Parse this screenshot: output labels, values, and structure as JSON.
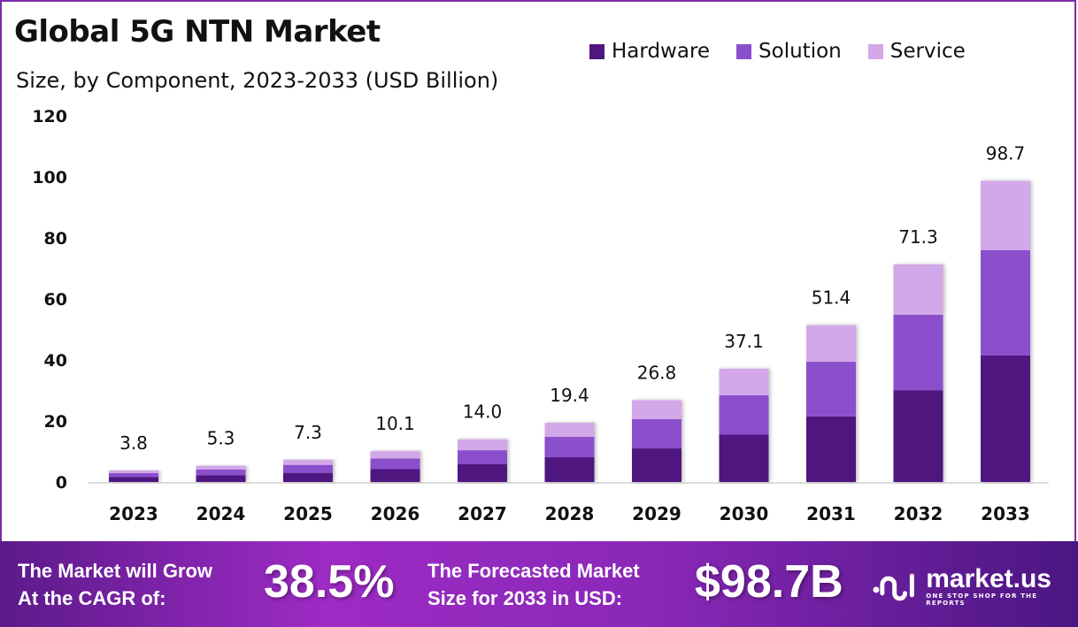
{
  "header": {
    "title": "Global 5G NTN Market",
    "subtitle": "Size, by Component, 2023-2033 (USD Billion)"
  },
  "legend": [
    {
      "label": "Hardware",
      "color": "#4f1680"
    },
    {
      "label": "Solution",
      "color": "#8b4fcc"
    },
    {
      "label": "Service",
      "color": "#d3a8e8"
    }
  ],
  "chart_data": {
    "type": "bar",
    "stacked": true,
    "title": "Global 5G NTN Market",
    "subtitle": "Size, by Component, 2023-2033 (USD Billion)",
    "xlabel": "",
    "ylabel": "",
    "ylim": [
      0,
      120
    ],
    "yticks": [
      "0",
      "20",
      "40",
      "60",
      "80",
      "100",
      "120"
    ],
    "grid": false,
    "legend_position": "top-right",
    "categories": [
      "2023",
      "2024",
      "2025",
      "2026",
      "2027",
      "2028",
      "2029",
      "2030",
      "2031",
      "2032",
      "2033"
    ],
    "totals": [
      "3.8",
      "5.3",
      "7.3",
      "10.1",
      "14.0",
      "19.4",
      "26.8",
      "37.1",
      "51.4",
      "71.3",
      "98.7"
    ],
    "series": [
      {
        "name": "Hardware",
        "color": "#4f1680",
        "values": [
          1.6,
          2.2,
          3.0,
          4.2,
          5.8,
          8.1,
          11.0,
          15.5,
          21.5,
          30.0,
          41.5
        ]
      },
      {
        "name": "Solution",
        "color": "#8b4fcc",
        "values": [
          1.3,
          1.9,
          2.6,
          3.5,
          4.6,
          6.7,
          9.6,
          12.9,
          17.9,
          24.8,
          34.5
        ]
      },
      {
        "name": "Service",
        "color": "#d3a8e8",
        "values": [
          0.9,
          1.2,
          1.7,
          2.4,
          3.6,
          4.6,
          6.2,
          8.7,
          12.0,
          16.5,
          22.7
        ]
      }
    ]
  },
  "banner": {
    "cagr_label_line1": "The Market will Grow",
    "cagr_label_line2": "At the CAGR of:",
    "cagr_value": "38.5%",
    "forecast_label_line1": "The Forecasted Market",
    "forecast_label_line2": "Size for 2033 in USD:",
    "forecast_value": "$98.7B",
    "logo_name": "market.us",
    "logo_tagline": "ONE STOP SHOP FOR THE REPORTS"
  }
}
